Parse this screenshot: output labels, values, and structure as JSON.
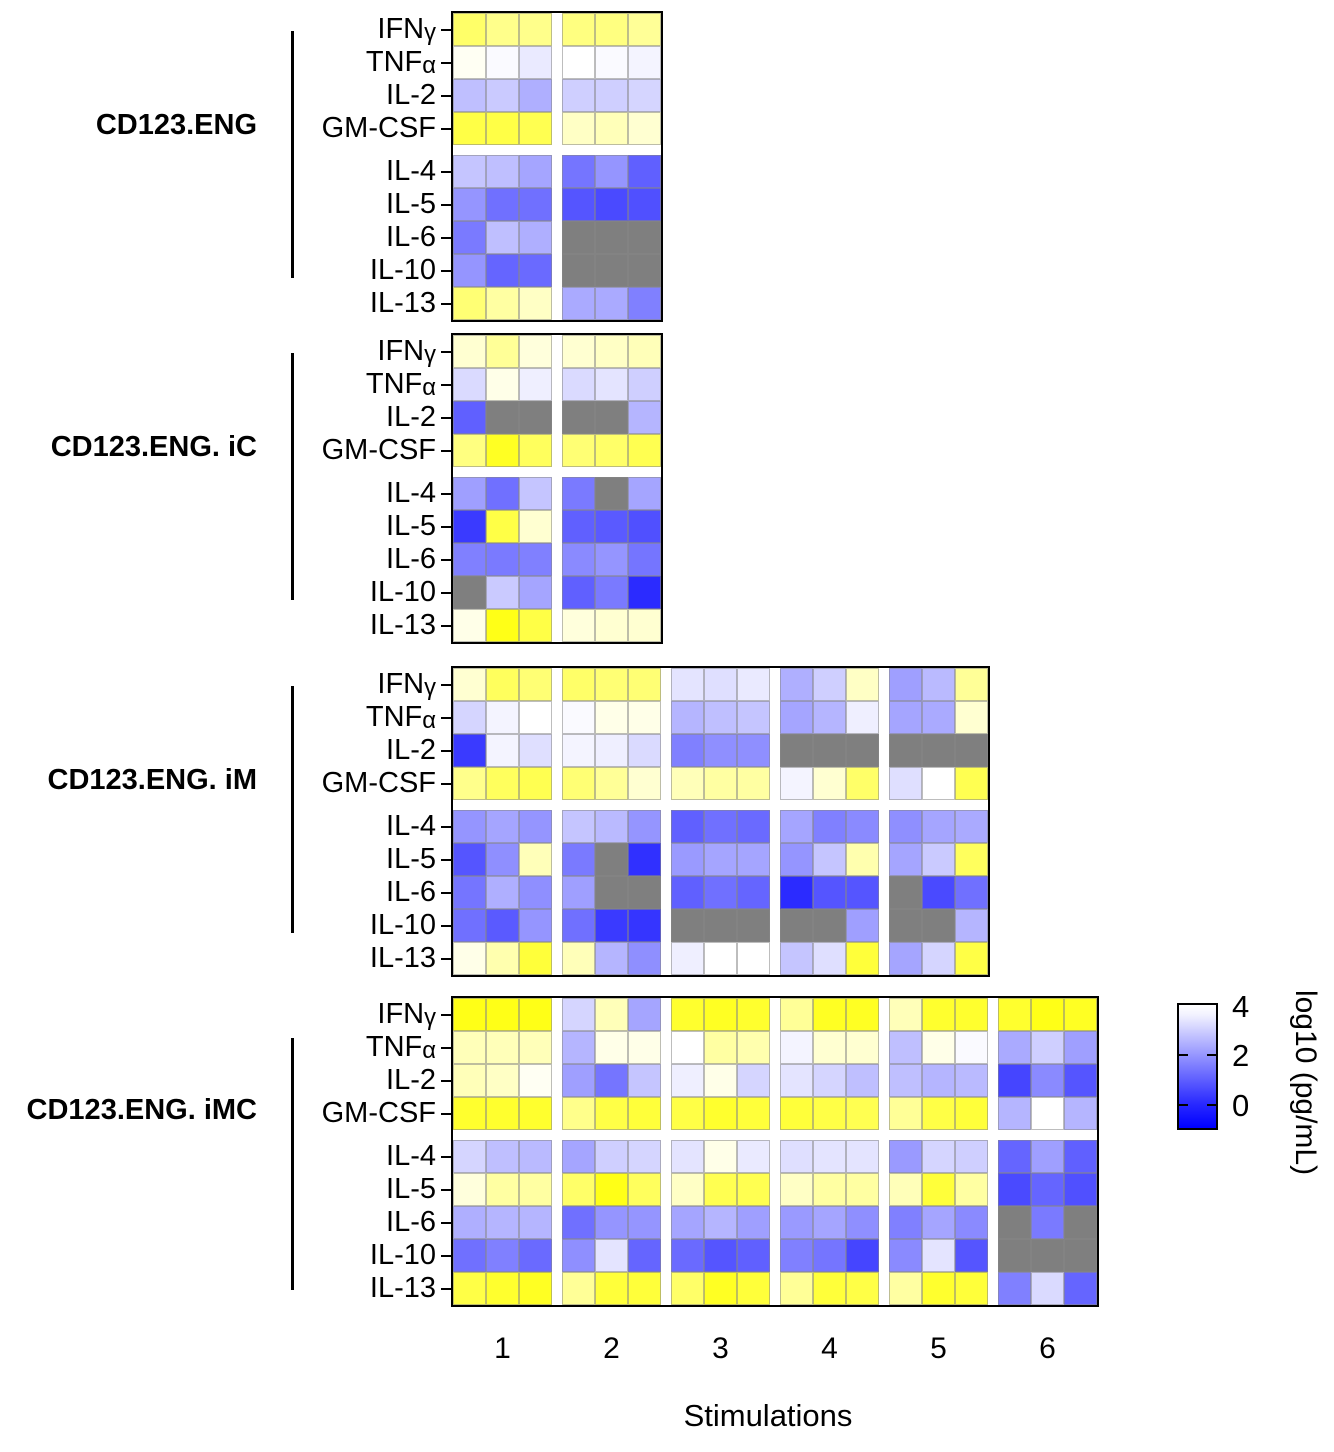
{
  "figure_title": "",
  "chart_data": {
    "type": "heatmap",
    "xlabel": "Stimulations",
    "rows": [
      "IFNγ",
      "TNFα",
      "IL-2",
      "GM-CSF",
      "IL-4",
      "IL-5",
      "IL-6",
      "IL-10",
      "IL-13"
    ],
    "row_group_break_after": "GM-CSF",
    "replicates_per_stimulation": 3,
    "value_scale": "log10 pg/mL",
    "na_color": "#7f7f7f",
    "na_meaning": "missing / not detected (gray cell)",
    "colorbar": {
      "label": "log10 (pg/mL)",
      "ticks": [
        "4",
        "2",
        "0"
      ],
      "tick_values": [
        4,
        2,
        0
      ],
      "top_color": "#ffffff",
      "bottom_color": "#0000ff",
      "high_offscale_color": "#ffff00"
    },
    "x_axis": {
      "label": "Stimulations",
      "ticks": [
        "1",
        "2",
        "3",
        "4",
        "5",
        "6"
      ]
    },
    "panels": [
      {
        "label": "CD123.ENG",
        "stimulations": [
          "1",
          "2"
        ],
        "values": [
          [
            5.3,
            5.0,
            5.0,
            5.1,
            5.1,
            4.9
          ],
          [
            4.1,
            3.9,
            3.6,
            4.0,
            3.9,
            3.8
          ],
          [
            2.8,
            3.0,
            2.5,
            3.1,
            3.1,
            3.2
          ],
          [
            5.6,
            5.6,
            5.5,
            4.5,
            4.6,
            4.4
          ],
          [
            2.9,
            2.8,
            2.3,
            1.4,
            2.0,
            1.0
          ],
          [
            2.0,
            1.3,
            1.3,
            0.8,
            0.6,
            0.7
          ],
          [
            1.5,
            2.8,
            2.5,
            null,
            null,
            null
          ],
          [
            2.0,
            1.1,
            1.2,
            null,
            null,
            null
          ],
          [
            5.2,
            4.8,
            4.5,
            2.4,
            2.4,
            1.6
          ]
        ]
      },
      {
        "label": "CD123.ENG. iC",
        "stimulations": [
          "1",
          "2"
        ],
        "values": [
          [
            4.4,
            4.9,
            4.3,
            4.4,
            4.5,
            4.6
          ],
          [
            3.3,
            4.2,
            3.7,
            3.3,
            3.5,
            3.1
          ],
          [
            1.0,
            null,
            null,
            null,
            null,
            2.6
          ],
          [
            5.1,
            5.9,
            5.4,
            5.2,
            5.3,
            5.5
          ],
          [
            2.2,
            1.3,
            2.9,
            1.5,
            null,
            2.3
          ],
          [
            0.3,
            5.6,
            4.4,
            1.0,
            0.9,
            0.7
          ],
          [
            1.6,
            1.5,
            1.6,
            1.8,
            2.0,
            1.4
          ],
          [
            null,
            3.0,
            2.3,
            1.0,
            1.5,
            0.0
          ],
          [
            4.2,
            6.0,
            5.6,
            4.3,
            4.4,
            4.4
          ]
        ]
      },
      {
        "label": "CD123.ENG. iM",
        "stimulations": [
          "1",
          "2",
          "3",
          "4",
          "5"
        ],
        "values": [
          [
            4.4,
            5.4,
            5.2,
            5.3,
            5.2,
            5.2,
            3.5,
            3.4,
            3.6,
            2.5,
            3.1,
            4.5,
            2.2,
            2.7,
            4.9
          ],
          [
            3.2,
            3.8,
            4.0,
            3.9,
            4.2,
            4.2,
            2.6,
            2.8,
            2.9,
            2.3,
            2.6,
            3.7,
            2.3,
            2.4,
            4.4
          ],
          [
            0.3,
            3.8,
            3.4,
            3.8,
            3.7,
            3.3,
            1.6,
            1.9,
            1.9,
            null,
            null,
            null,
            null,
            null,
            null
          ],
          [
            5.0,
            5.4,
            5.5,
            5.2,
            4.9,
            4.4,
            4.6,
            4.8,
            4.8,
            3.8,
            4.4,
            5.3,
            3.4,
            4.0,
            5.5
          ],
          [
            2.0,
            2.3,
            2.0,
            2.9,
            2.7,
            2.0,
            1.0,
            1.3,
            1.2,
            2.3,
            1.6,
            1.8,
            1.9,
            2.3,
            2.4
          ],
          [
            0.8,
            1.9,
            4.6,
            1.5,
            null,
            0.1,
            2.1,
            2.3,
            2.3,
            2.0,
            2.9,
            4.7,
            2.3,
            3.0,
            5.4
          ],
          [
            1.4,
            2.5,
            1.9,
            2.2,
            null,
            null,
            1.0,
            1.3,
            1.1,
            0.0,
            0.8,
            0.8,
            null,
            0.6,
            1.3
          ],
          [
            1.3,
            0.9,
            2.0,
            1.3,
            0.3,
            0.2,
            null,
            null,
            null,
            null,
            null,
            2.2,
            null,
            null,
            2.6
          ],
          [
            4.2,
            4.7,
            5.7,
            4.6,
            2.6,
            1.9,
            3.7,
            4.0,
            4.0,
            2.9,
            3.4,
            5.7,
            2.3,
            3.2,
            5.6
          ]
        ]
      },
      {
        "label": "CD123.ENG. iMC",
        "stimulations": [
          "1",
          "2",
          "3",
          "4",
          "5",
          "6"
        ],
        "values": [
          [
            6.0,
            6.0,
            6.0,
            3.2,
            4.6,
            2.3,
            5.8,
            5.9,
            5.8,
            4.9,
            5.9,
            5.9,
            4.6,
            5.8,
            5.8,
            5.8,
            6.0,
            5.9
          ],
          [
            4.6,
            4.6,
            4.6,
            2.6,
            4.2,
            4.2,
            4.0,
            4.8,
            4.7,
            3.8,
            4.4,
            4.4,
            2.8,
            4.2,
            3.9,
            2.4,
            3.1,
            2.2
          ],
          [
            4.6,
            4.5,
            4.1,
            2.2,
            1.4,
            2.9,
            3.7,
            4.2,
            3.2,
            3.5,
            3.2,
            2.8,
            2.8,
            2.6,
            2.7,
            0.5,
            1.8,
            0.8
          ],
          [
            5.8,
            5.8,
            5.8,
            5.0,
            5.6,
            5.7,
            5.6,
            5.8,
            5.7,
            5.7,
            5.6,
            5.5,
            4.9,
            5.6,
            5.7,
            2.6,
            4.0,
            2.6
          ],
          [
            3.2,
            2.8,
            2.7,
            2.3,
            3.1,
            3.2,
            3.5,
            4.2,
            3.6,
            3.4,
            3.5,
            3.5,
            2.1,
            3.2,
            3.1,
            1.1,
            2.2,
            1.0
          ],
          [
            4.3,
            4.8,
            4.8,
            5.3,
            6.0,
            5.4,
            4.5,
            5.5,
            5.5,
            4.5,
            4.8,
            4.8,
            4.6,
            5.7,
            4.8,
            0.6,
            1.1,
            0.7
          ],
          [
            2.5,
            2.6,
            2.6,
            1.3,
            2.0,
            2.0,
            2.3,
            2.6,
            2.2,
            2.1,
            2.3,
            1.9,
            1.6,
            2.3,
            1.8,
            null,
            1.5,
            null
          ],
          [
            1.3,
            1.6,
            1.2,
            1.9,
            3.5,
            1.1,
            1.2,
            0.8,
            1.0,
            1.6,
            1.4,
            0.5,
            1.8,
            3.5,
            0.8,
            null,
            null,
            null
          ],
          [
            5.6,
            5.8,
            5.9,
            4.9,
            5.7,
            5.7,
            5.3,
            5.9,
            5.7,
            4.9,
            5.7,
            5.6,
            4.8,
            5.8,
            5.7,
            1.6,
            3.3,
            1.1
          ]
        ]
      }
    ]
  }
}
